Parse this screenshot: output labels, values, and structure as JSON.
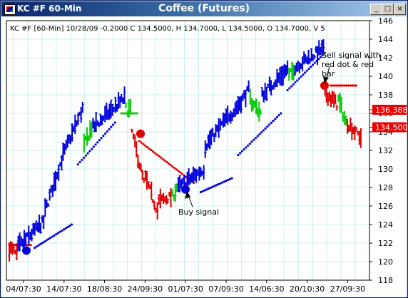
{
  "window": {
    "symbol": "KC #F 60-Min",
    "title": "Coffee (Futures)",
    "buttons": [
      "_",
      "□",
      "×"
    ]
  },
  "header_text": "KC #F [60-Min] 10/28/09  -0.2000 C 134.5000, H 134.7000, L 134.5000, O 134.7000, V 5",
  "annotations": {
    "sell": "Sell signal with red dot & red bar",
    "buy": "Buy signal"
  },
  "colors": {
    "up": "#0000dd",
    "down": "#dd0000",
    "neutral": "#00cc00",
    "grid": "#c8f0f0",
    "price_label_bg": "#ee0000"
  },
  "chart_data": {
    "type": "bar",
    "subtype": "ohlc-price-bars",
    "ylim": [
      118,
      146
    ],
    "yticks": [
      118,
      120,
      122,
      124,
      126,
      128,
      130,
      132,
      134,
      136,
      138,
      140,
      142,
      144,
      146
    ],
    "x_labels": [
      "04/07:30",
      "14/07:30",
      "18/08:30",
      "24/09:30",
      "01/07:30",
      "07/09:30",
      "14/06:30",
      "20/10:30",
      "27/09:30"
    ],
    "price_labels": [
      {
        "value": 136.388,
        "text": "136.388"
      },
      {
        "value": 134.5,
        "text": "134.500"
      }
    ],
    "segments": [
      {
        "color": "down",
        "n": 6,
        "path": [
          [
            121.5,
            120.7
          ]
        ]
      },
      {
        "color": "up",
        "n": 18,
        "path": [
          [
            121.6,
            124.3
          ]
        ]
      },
      {
        "color": "up",
        "n": 12,
        "path": [
          [
            125.5,
            131
          ]
        ]
      },
      {
        "color": "up",
        "n": 14,
        "path": [
          [
            131.5,
            136.5
          ]
        ]
      },
      {
        "color": "neutral",
        "n": 6,
        "path": [
          [
            132.5,
            134.5
          ]
        ]
      },
      {
        "color": "up",
        "n": 22,
        "path": [
          [
            134.5,
            137.6
          ]
        ]
      },
      {
        "color": "neutral",
        "n": 4,
        "path": [
          [
            136.5,
            136.3
          ]
        ]
      },
      {
        "color": "down",
        "n": 28,
        "path": [
          [
            134,
            128.5
          ],
          [
            129,
            125.5
          ],
          [
            126.5,
            127
          ]
        ]
      },
      {
        "color": "neutral",
        "n": 4,
        "path": [
          [
            127,
            128
          ]
        ]
      },
      {
        "color": "up",
        "n": 18,
        "path": [
          [
            128,
            130
          ]
        ]
      },
      {
        "color": "up",
        "n": 18,
        "path": [
          [
            132.5,
            136
          ]
        ]
      },
      {
        "color": "up",
        "n": 12,
        "path": [
          [
            136,
            138.5
          ]
        ]
      },
      {
        "color": "neutral",
        "n": 8,
        "path": [
          [
            137.5,
            136
          ]
        ]
      },
      {
        "color": "up",
        "n": 18,
        "path": [
          [
            138,
            140.8
          ]
        ]
      },
      {
        "color": "neutral",
        "n": 4,
        "path": [
          [
            140,
            140.8
          ]
        ]
      },
      {
        "color": "up",
        "n": 20,
        "path": [
          [
            141,
            143
          ]
        ]
      },
      {
        "color": "down",
        "n": 9,
        "path": [
          [
            138.3,
            137
          ]
        ]
      },
      {
        "color": "neutral",
        "n": 6,
        "path": [
          [
            137.5,
            135
          ]
        ]
      },
      {
        "color": "down",
        "n": 10,
        "path": [
          [
            135,
            133.4
          ]
        ]
      }
    ],
    "stops": [
      {
        "color": "down",
        "n": 8,
        "from": 121.8,
        "to": 121.8
      },
      {
        "color": "up",
        "n": 14,
        "from": 121.5,
        "to": 124
      },
      {
        "color": "up",
        "n": 14,
        "from": 130.5,
        "to": 135
      },
      {
        "color": "neutral",
        "n": 6,
        "from": 136,
        "to": 136
      },
      {
        "color": "down",
        "n": 20,
        "from": 133,
        "to": 128.5
      },
      {
        "color": "up",
        "n": 12,
        "from": 127.5,
        "to": 129
      },
      {
        "color": "up",
        "n": 16,
        "from": 131.5,
        "to": 136
      },
      {
        "color": "up",
        "n": 14,
        "from": 138.5,
        "to": 142.5
      },
      {
        "color": "down",
        "n": 10,
        "from": 139,
        "to": 139
      }
    ],
    "signals": [
      {
        "kind": "buy",
        "color": "up",
        "value": 121.2
      },
      {
        "kind": "sell",
        "color": "down",
        "value": 133.8
      },
      {
        "kind": "buy",
        "color": "up",
        "value": 127.8
      },
      {
        "kind": "sell",
        "color": "down",
        "value": 139
      }
    ]
  }
}
